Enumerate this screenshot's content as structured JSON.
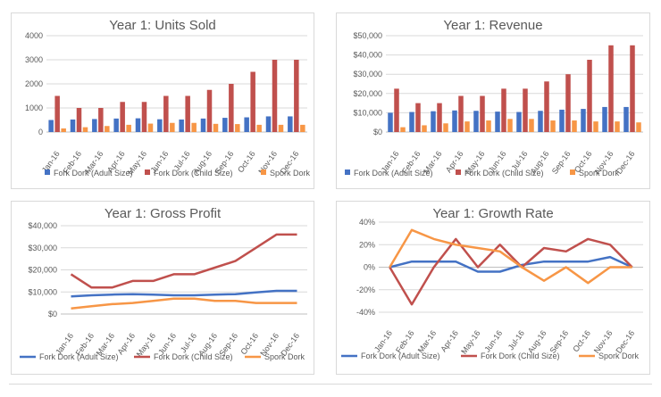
{
  "months": [
    "Jan-16",
    "Feb-16",
    "Mar-16",
    "Apr-16",
    "May-16",
    "Jun-16",
    "Jul-16",
    "Aug-16",
    "Sep-16",
    "Oct-16",
    "Nov-16",
    "Dec-16"
  ],
  "colors": {
    "adult": "#4472c4",
    "child": "#c0504d",
    "spork": "#f79646",
    "grid": "#d9d9d9",
    "axis": "#595959"
  },
  "chart_data": [
    {
      "type": "bar",
      "title": "Year 1: Units Sold",
      "categories": [
        "Jan-16",
        "Feb-16",
        "Mar-16",
        "Apr-16",
        "May-16",
        "Jun-16",
        "Jul-16",
        "Aug-16",
        "Sep-16",
        "Oct-16",
        "Nov-16",
        "Dec-16"
      ],
      "ylim": [
        0,
        4000
      ],
      "yticks": [
        "0",
        "1000",
        "2000",
        "3000",
        "4000"
      ],
      "series": [
        {
          "name": "Fork Dork (Adult Size)",
          "color": "#4472c4",
          "values": [
            500,
            520,
            540,
            560,
            570,
            530,
            520,
            560,
            590,
            610,
            650,
            650
          ]
        },
        {
          "name": "Fork Dork (Child Size)",
          "color": "#c0504d",
          "values": [
            1500,
            1000,
            1000,
            1250,
            1250,
            1500,
            1500,
            1750,
            2000,
            2500,
            3000,
            3000
          ]
        },
        {
          "name": "Spork Dork",
          "color": "#f79646",
          "values": [
            150,
            200,
            250,
            300,
            350,
            380,
            380,
            340,
            330,
            300,
            300,
            300
          ]
        }
      ]
    },
    {
      "type": "bar",
      "title": "Year 1: Revenue",
      "categories": [
        "Jan-16",
        "Feb-16",
        "Mar-16",
        "Apr-16",
        "May-16",
        "Jun-16",
        "Jul-16",
        "Aug-16",
        "Sep-16",
        "Oct-16",
        "Nov-16",
        "Dec-16"
      ],
      "ylim": [
        0,
        50000
      ],
      "yticks": [
        "$0",
        "$10,000",
        "$20,000",
        "$30,000",
        "$40,000",
        "$50,000"
      ],
      "series": [
        {
          "name": "Fork Dork (Adult Size)",
          "color": "#4472c4",
          "values": [
            10000,
            10400,
            10800,
            11200,
            11000,
            10600,
            10400,
            11000,
            11600,
            12000,
            13000,
            13000
          ]
        },
        {
          "name": "Fork Dork (Child Size)",
          "color": "#c0504d",
          "values": [
            22500,
            15000,
            15000,
            18750,
            18750,
            22500,
            22500,
            26250,
            30000,
            37500,
            45000,
            45000
          ]
        },
        {
          "name": "Spork Dork",
          "color": "#f79646",
          "values": [
            2500,
            3500,
            4500,
            5500,
            6000,
            6800,
            6800,
            6000,
            6000,
            5500,
            5500,
            5000
          ]
        }
      ]
    },
    {
      "type": "line",
      "title": "Year 1: Gross Profit",
      "categories": [
        "Jan-16",
        "Feb-16",
        "Mar-16",
        "Apr-16",
        "May-16",
        "Jun-16",
        "Jul-16",
        "Aug-16",
        "Sep-16",
        "Oct-16",
        "Nov-16",
        "Dec-16"
      ],
      "ylim": [
        0,
        40000
      ],
      "yticks": [
        "$0",
        "$10,000",
        "$20,000",
        "$30,000",
        "$40,000"
      ],
      "series": [
        {
          "name": "Fork Dork (Adult Size)",
          "color": "#4472c4",
          "values": [
            8000,
            8500,
            8800,
            9000,
            8800,
            8500,
            8500,
            8800,
            9000,
            9800,
            10500,
            10500
          ]
        },
        {
          "name": "Fork Dork (Child Size)",
          "color": "#c0504d",
          "values": [
            18000,
            12000,
            12000,
            15000,
            15000,
            18000,
            18000,
            21000,
            24000,
            30000,
            36000,
            36000
          ]
        },
        {
          "name": "Spork Dork",
          "color": "#f79646",
          "values": [
            2500,
            3500,
            4500,
            5000,
            6000,
            7000,
            7000,
            6000,
            6000,
            5000,
            5000,
            5000
          ]
        }
      ]
    },
    {
      "type": "line",
      "title": "Year 1: Growth Rate",
      "categories": [
        "Jan-16",
        "Feb-16",
        "Mar-16",
        "Apr-16",
        "May-16",
        "Jun-16",
        "Jul-16",
        "Aug-16",
        "Sep-16",
        "Oct-16",
        "Nov-16",
        "Dec-16"
      ],
      "ylim": [
        -40,
        40
      ],
      "yticks": [
        "-40%",
        "-20%",
        "0%",
        "20%",
        "40%"
      ],
      "series": [
        {
          "name": "Fork Dork (Adult Size)",
          "color": "#4472c4",
          "values": [
            0,
            5,
            5,
            5,
            -4,
            -4,
            2,
            5,
            5,
            5,
            9,
            0
          ]
        },
        {
          "name": "Fork Dork (Child Size)",
          "color": "#c0504d",
          "values": [
            0,
            -33,
            0,
            25,
            0,
            20,
            0,
            17,
            14,
            25,
            20,
            0
          ]
        },
        {
          "name": "Spork Dork",
          "color": "#f79646",
          "values": [
            0,
            33,
            25,
            20,
            17,
            14,
            0,
            -12,
            0,
            -14,
            0,
            0
          ]
        }
      ]
    }
  ]
}
